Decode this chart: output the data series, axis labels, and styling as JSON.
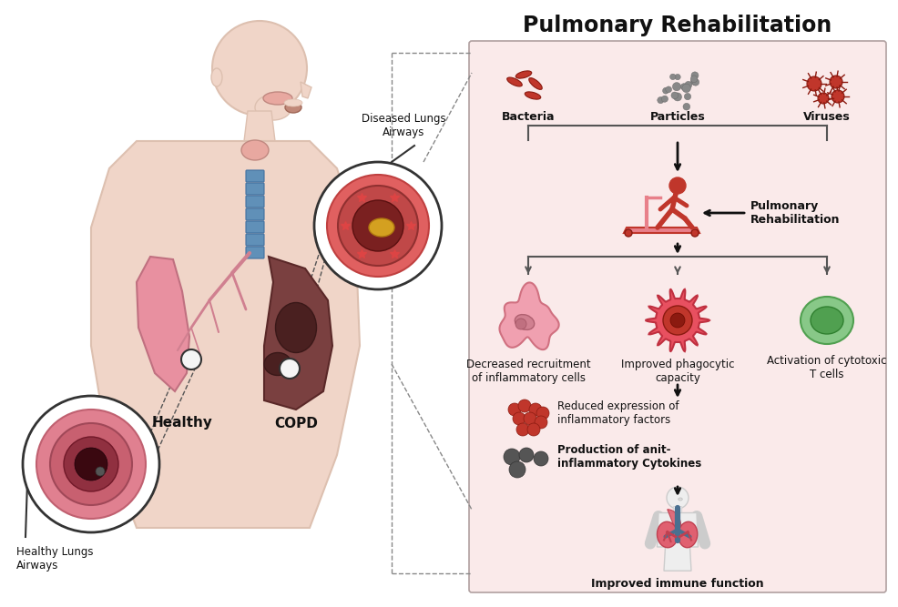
{
  "title": "Pulmonary Rehabilitation",
  "background_color": "#ffffff",
  "panel_bg": "#faeaea",
  "right_labels": {
    "bacteria": "Bacteria",
    "particles": "Particles",
    "viruses": "Viruses",
    "pulm_rehab": "Pulmonary\nRehabilitation",
    "decreased": "Decreased recruitment\nof inflammatory cells",
    "improved": "Improved phagocytic\ncapacity",
    "activation": "Activation of cytotoxic\nT cells",
    "reduced": "Reduced expression of\ninflammatory factors",
    "production": "Production of anit-\ninflammatory Cytokines",
    "immune": "Improved immune function"
  },
  "left_labels": {
    "healthy_lungs": "Healthy Lungs\nAirways",
    "diseased_lungs": "Diseased Lungs\nAirways",
    "healthy": "Healthy",
    "copd": "COPD"
  }
}
